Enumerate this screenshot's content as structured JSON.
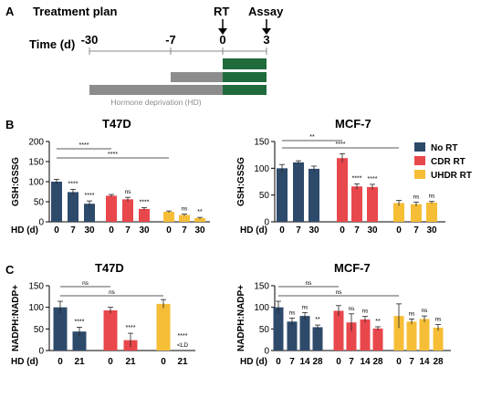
{
  "panel_a": {
    "letter": "A",
    "title": "Treatment plan",
    "time_label": "Time (d)",
    "ticks": [
      "-30",
      "-7",
      "0",
      "3"
    ],
    "rt_label": "RT",
    "assay_label": "Assay",
    "hd_label": "Hormone deprivation (HD)",
    "colors": {
      "rt_bar": "#1f6b3c",
      "hd_bar": "#8c8c8c"
    }
  },
  "colors": {
    "No RT": "#2e4a6b",
    "CDR RT": "#e8474c",
    "UHDR RT": "#f5be36"
  },
  "legend": [
    "No RT",
    "CDR RT",
    "UHDR RT"
  ],
  "chart_data": [
    {
      "type": "bar",
      "panel": "B",
      "title": "T47D",
      "ylabel": "GSH:GSSG",
      "xlabel": "HD (d)",
      "ylim": [
        0,
        200
      ],
      "yticks": [
        0,
        50,
        100,
        150,
        200
      ],
      "groups": [
        {
          "series": "No RT",
          "categories": [
            "0",
            "7",
            "30"
          ],
          "values": [
            100,
            74,
            45
          ],
          "errors": [
            6,
            7,
            7
          ],
          "labels": [
            "",
            "****",
            "****"
          ]
        },
        {
          "series": "CDR RT",
          "categories": [
            "0",
            "7",
            "30"
          ],
          "values": [
            65,
            56,
            32
          ],
          "errors": [
            3,
            5,
            3
          ],
          "labels": [
            "",
            "ns",
            "****"
          ]
        },
        {
          "series": "UHDR RT",
          "categories": [
            "0",
            "7",
            "30"
          ],
          "values": [
            25,
            17,
            9
          ],
          "errors": [
            2,
            2,
            2
          ],
          "labels": [
            "",
            "ns",
            "**"
          ]
        }
      ],
      "brackets": [
        {
          "from": [
            0,
            0
          ],
          "to": [
            1,
            0
          ],
          "label": "****"
        },
        {
          "from": [
            0,
            0
          ],
          "to": [
            2,
            0
          ],
          "label": "****"
        }
      ]
    },
    {
      "type": "bar",
      "panel": "B",
      "title": "MCF-7",
      "ylabel": "GSH:GSSG",
      "xlabel": "HD (d)",
      "ylim": [
        0,
        150
      ],
      "yticks": [
        0,
        50,
        100,
        150
      ],
      "groups": [
        {
          "series": "No RT",
          "categories": [
            "0",
            "7",
            "30"
          ],
          "values": [
            100,
            111,
            99
          ],
          "errors": [
            7,
            3,
            5
          ],
          "labels": [
            "",
            "",
            ""
          ]
        },
        {
          "series": "CDR RT",
          "categories": [
            "0",
            "7",
            "30"
          ],
          "values": [
            119,
            66,
            65
          ],
          "errors": [
            8,
            5,
            5
          ],
          "labels": [
            "",
            "****",
            "****"
          ]
        },
        {
          "series": "UHDR RT",
          "categories": [
            "0",
            "7",
            "30"
          ],
          "values": [
            35,
            33,
            36
          ],
          "errors": [
            5,
            4,
            2
          ],
          "labels": [
            "",
            "ns",
            "ns"
          ]
        }
      ],
      "brackets": [
        {
          "from": [
            0,
            0
          ],
          "to": [
            1,
            0
          ],
          "label": "**"
        },
        {
          "from": [
            0,
            0
          ],
          "to": [
            2,
            0
          ],
          "label": "****"
        }
      ]
    },
    {
      "type": "bar",
      "panel": "C",
      "title": "T47D",
      "ylabel": "NADPH:NADP+",
      "xlabel": "HD (d)",
      "ylim": [
        0,
        150
      ],
      "yticks": [
        0,
        50,
        100,
        150
      ],
      "groups": [
        {
          "series": "No RT",
          "categories": [
            "0",
            "21"
          ],
          "values": [
            100,
            44
          ],
          "errors": [
            14,
            10
          ],
          "labels": [
            "",
            "****"
          ]
        },
        {
          "series": "CDR RT",
          "categories": [
            "0",
            "21"
          ],
          "values": [
            93,
            24
          ],
          "errors": [
            7,
            16
          ],
          "labels": [
            "",
            "****"
          ]
        },
        {
          "series": "UHDR RT",
          "categories": [
            "0",
            "21"
          ],
          "values": [
            108,
            0
          ],
          "errors": [
            10,
            0
          ],
          "labels": [
            "",
            "****"
          ],
          "notes": [
            "",
            "<LD"
          ]
        }
      ],
      "brackets": [
        {
          "from": [
            0,
            0
          ],
          "to": [
            1,
            0
          ],
          "label": "ns"
        },
        {
          "from": [
            0,
            0
          ],
          "to": [
            2,
            0
          ],
          "label": "ns"
        }
      ]
    },
    {
      "type": "bar",
      "panel": "C",
      "title": "MCF-7",
      "ylabel": "NADPH:NADP+",
      "xlabel": "HD (d)",
      "ylim": [
        0,
        150
      ],
      "yticks": [
        0,
        50,
        100,
        150
      ],
      "groups": [
        {
          "series": "No RT",
          "categories": [
            "0",
            "7",
            "14",
            "28"
          ],
          "values": [
            100,
            67,
            80,
            54
          ],
          "errors": [
            14,
            8,
            8,
            5
          ],
          "labels": [
            "",
            "ns",
            "ns",
            "**"
          ]
        },
        {
          "series": "CDR RT",
          "categories": [
            "0",
            "7",
            "14",
            "28"
          ],
          "values": [
            92,
            65,
            72,
            51
          ],
          "errors": [
            12,
            20,
            7,
            4
          ],
          "labels": [
            "",
            "ns",
            "ns",
            "**"
          ]
        },
        {
          "series": "UHDR RT",
          "categories": [
            "0",
            "7",
            "14",
            "28"
          ],
          "values": [
            80,
            67,
            73,
            53
          ],
          "errors": [
            28,
            6,
            7,
            7
          ],
          "labels": [
            "",
            "ns",
            "ns",
            "ns"
          ]
        }
      ],
      "brackets": [
        {
          "from": [
            0,
            0
          ],
          "to": [
            1,
            0
          ],
          "label": "ns"
        },
        {
          "from": [
            0,
            0
          ],
          "to": [
            2,
            0
          ],
          "label": "ns"
        }
      ]
    }
  ]
}
